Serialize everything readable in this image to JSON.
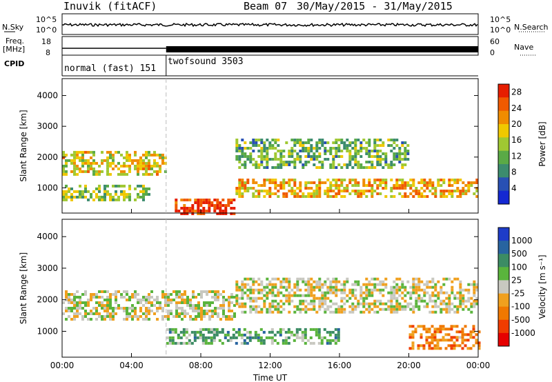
{
  "header": {
    "station": "Inuvik (fitACF)",
    "beam": "Beam 07",
    "date_range": "30/May/2015 - 31/May/2015"
  },
  "summary_panels": {
    "nsky_label": "N.Sky",
    "nsky_ticks": [
      "10^5",
      "10^0"
    ],
    "nsearch_label": "N.Search",
    "nsearch_ticks": [
      "10^5",
      "10^0"
    ],
    "freq_label_1": "Freq.",
    "freq_label_2": "[MHz]",
    "freq_ticks": [
      "18",
      "8"
    ],
    "nave_label": "Nave",
    "nave_ticks": [
      "60",
      "0"
    ],
    "cpid_label": "CPID",
    "cpid_modes": [
      {
        "name": "normal (fast) 151",
        "start_hour": 0
      },
      {
        "name": "twofsound 3503",
        "start_hour": 6
      }
    ]
  },
  "colors": {
    "power_scale": [
      "#1428d2",
      "#2850b4",
      "#3c8c6e",
      "#5aaa46",
      "#a0c832",
      "#f0c800",
      "#f08c00",
      "#f05a00",
      "#e61e00"
    ],
    "velocity_scale": [
      "#1e3cc8",
      "#2864a0",
      "#3c8c64",
      "#5ab43c",
      "#c8c8c0",
      "#f0a01e",
      "#f07800",
      "#f03c00",
      "#e60000"
    ]
  },
  "chart_data": [
    {
      "type": "heatmap",
      "title": "Power",
      "ylabel": "Slant Range [km]",
      "xlabel": "Time UT",
      "x_ticks": [
        "00:00",
        "04:00",
        "08:00",
        "12:00",
        "16:00",
        "20:00",
        "00:00"
      ],
      "xlim_hours": [
        0,
        24
      ],
      "y_ticks": [
        "1000",
        "2000",
        "3000",
        "4000"
      ],
      "ylim_km": [
        180,
        4550
      ],
      "colorbar_label": "Power [dB]",
      "colorbar_ticks": [
        "4",
        "8",
        "12",
        "16",
        "20",
        "24",
        "28"
      ],
      "clim": [
        0,
        30
      ],
      "echo_bands": [
        {
          "t0": 0,
          "t1": 6,
          "r0": 1400,
          "r1": 2200,
          "v": 18
        },
        {
          "t0": 0,
          "t1": 5,
          "r0": 650,
          "r1": 1100,
          "v": 14
        },
        {
          "t0": 6.5,
          "t1": 10,
          "r0": 180,
          "r1": 650,
          "v": 28
        },
        {
          "t0": 10,
          "t1": 24,
          "r0": 700,
          "r1": 1300,
          "v": 20
        },
        {
          "t0": 10,
          "t1": 20,
          "r0": 1700,
          "r1": 2600,
          "v": 12
        }
      ]
    },
    {
      "type": "heatmap",
      "title": "Velocity",
      "ylabel": "Slant Range [km]",
      "xlabel": "Time UT",
      "x_ticks": [
        "00:00",
        "04:00",
        "08:00",
        "12:00",
        "16:00",
        "20:00",
        "00:00"
      ],
      "xlim_hours": [
        0,
        24
      ],
      "y_ticks": [
        "1000",
        "2000",
        "3000",
        "4000"
      ],
      "ylim_km": [
        180,
        4550
      ],
      "colorbar_label": "Velocity [m s⁻¹]",
      "colorbar_ticks": [
        "1000",
        "500",
        "100",
        "25",
        "-25",
        "-100",
        "-500",
        "-1000"
      ],
      "clim": [
        -1000,
        1000
      ],
      "echo_bands": [
        {
          "t0": 0,
          "t1": 10,
          "r0": 1400,
          "r1": 2300,
          "v": 0
        },
        {
          "t0": 10,
          "t1": 24,
          "r0": 1600,
          "r1": 2700,
          "v": 0
        },
        {
          "t0": 6,
          "t1": 16,
          "r0": 650,
          "r1": 1100,
          "v": 300
        },
        {
          "t0": 20,
          "t1": 24,
          "r0": 500,
          "r1": 1200,
          "v": -400
        }
      ]
    }
  ]
}
